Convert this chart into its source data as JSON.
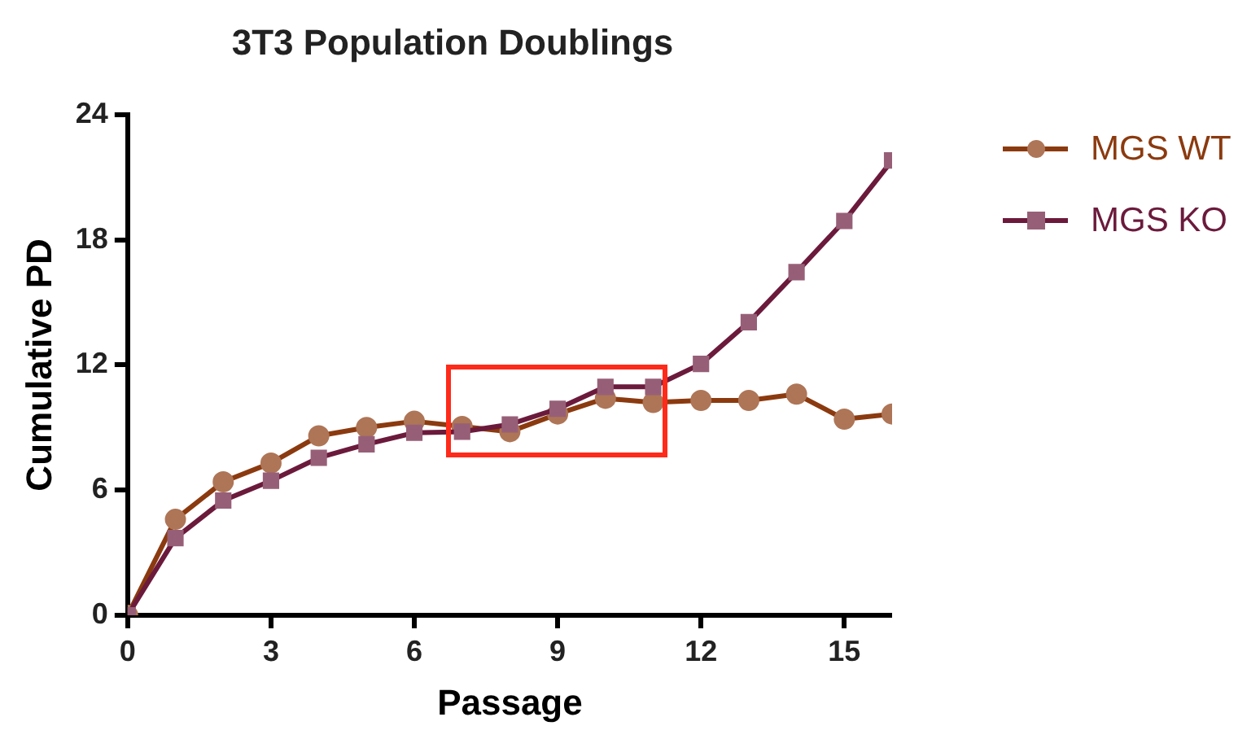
{
  "chart_data": {
    "type": "line",
    "title": "3T3 Population Doublings",
    "xlabel": "Passage",
    "ylabel": "Cumulative PD",
    "x": [
      0,
      1,
      2,
      3,
      4,
      5,
      6,
      7,
      8,
      9,
      10,
      11,
      12,
      13,
      14,
      15,
      16
    ],
    "series": [
      {
        "name": "MGS WT",
        "color": "#8b3a0f",
        "marker": "circle",
        "values": [
          0,
          4.6,
          6.4,
          7.3,
          8.6,
          9.0,
          9.3,
          9.05,
          8.8,
          9.65,
          10.4,
          10.2,
          10.3,
          10.3,
          10.6,
          9.4,
          9.65
        ]
      },
      {
        "name": "MGS KO",
        "color": "#6b1a3c",
        "marker": "square",
        "values": [
          0,
          3.7,
          5.5,
          6.45,
          7.55,
          8.2,
          8.75,
          8.8,
          9.15,
          9.9,
          10.95,
          10.95,
          12.05,
          14.05,
          16.45,
          18.9,
          21.8
        ]
      }
    ],
    "xlim": [
      0,
      16
    ],
    "xticks": [
      0,
      3,
      6,
      9,
      12,
      15
    ],
    "ylim": [
      0,
      24
    ],
    "yticks": [
      0,
      6,
      12,
      18,
      24
    ],
    "grid": false,
    "legend": "right",
    "line_style": "solid"
  }
}
